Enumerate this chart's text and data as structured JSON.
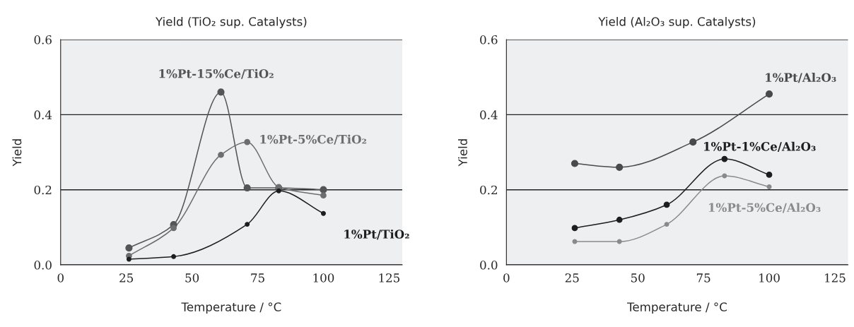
{
  "chart_data": [
    {
      "type": "line",
      "title": "Yield (TiO₂ sup. Catalysts)",
      "xlabel": "Temperature / °C",
      "ylabel": "Yield",
      "xlim": [
        0,
        130
      ],
      "xticks": [
        0,
        25,
        50,
        75,
        100,
        125
      ],
      "ylim": [
        0,
        0.6
      ],
      "yticks": [
        {
          "value": 0,
          "label": "0.0"
        },
        {
          "value": 0.2,
          "label": "0.2"
        },
        {
          "value": 0.4,
          "label": "0.4"
        },
        {
          "value": 0.6,
          "label": "0.6"
        }
      ],
      "grid": "y",
      "marker": "circle",
      "legend": false,
      "series": [
        {
          "name": "1%Pt-15%Ce/TiO₂",
          "color": "#555555",
          "x": [
            26,
            43,
            61,
            71,
            83,
            100
          ],
          "values": [
            0.045,
            0.107,
            0.46,
            0.205,
            0.205,
            0.2
          ]
        },
        {
          "name": "1%Pt-5%Ce/TiO₂",
          "color": "#6e6e6e",
          "x": [
            26,
            43,
            61,
            71,
            83,
            100
          ],
          "values": [
            0.024,
            0.098,
            0.293,
            0.327,
            0.207,
            0.185
          ]
        },
        {
          "name": "1%Pt/TiO₂",
          "color": "#1e1e1e",
          "x": [
            26,
            43,
            71,
            83,
            100
          ],
          "values": [
            0.015,
            0.022,
            0.108,
            0.197,
            0.137
          ]
        }
      ]
    },
    {
      "type": "line",
      "title": "Yield (Al₂O₃ sup. Catalysts)",
      "xlabel": "Temperature / °C",
      "ylabel": "Yield",
      "xlim": [
        0,
        130
      ],
      "xticks": [
        0,
        25,
        50,
        75,
        100,
        125
      ],
      "ylim": [
        0,
        0.6
      ],
      "yticks": [
        {
          "value": 0,
          "label": "0.0"
        },
        {
          "value": 0.2,
          "label": "0.2"
        },
        {
          "value": 0.4,
          "label": "0.4"
        },
        {
          "value": 0.6,
          "label": "0.6"
        }
      ],
      "grid": "y",
      "marker": "circle",
      "legend": false,
      "series": [
        {
          "name": "1%Pt/Al₂O₃",
          "color": "#4a4a4a",
          "x": [
            26,
            43,
            71,
            100
          ],
          "values": [
            0.27,
            0.26,
            0.327,
            0.455
          ]
        },
        {
          "name": "1%Pt-1%Ce/Al₂O₃",
          "color": "#1e1e1e",
          "x": [
            26,
            43,
            61,
            83,
            100
          ],
          "values": [
            0.098,
            0.12,
            0.16,
            0.282,
            0.24
          ]
        },
        {
          "name": "1%Pt-5%Ce/Al₂O₃",
          "color": "#8a8a8a",
          "x": [
            26,
            43,
            61,
            83,
            100
          ],
          "values": [
            0.062,
            0.062,
            0.108,
            0.237,
            0.208
          ]
        }
      ]
    }
  ]
}
